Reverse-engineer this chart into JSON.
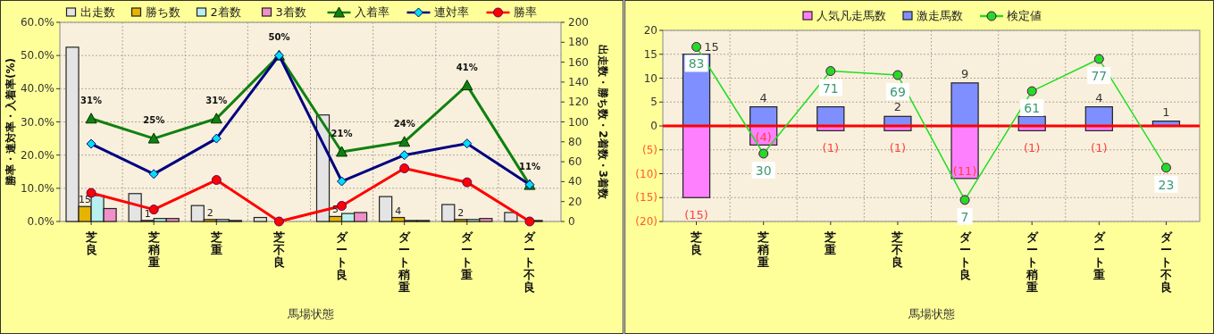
{
  "chart_data": [
    {
      "type": "bar",
      "xlabel": "馬場状態",
      "ylabel": "勝率・連対率・入着率(%)",
      "y2label": "出走数・勝ち数・2着数・3着数",
      "categories": [
        "芝良",
        "芝稍重",
        "芝重",
        "芝不良",
        "ダート良",
        "ダート稍重",
        "ダート重",
        "ダート不良"
      ],
      "ylim": [
        0,
        60
      ],
      "yticks": [
        {
          "value": 0,
          "label": "0.0%"
        },
        {
          "value": 10,
          "label": "10.0%"
        },
        {
          "value": 20,
          "label": "20.0%"
        },
        {
          "value": 30,
          "label": "30.0%"
        },
        {
          "value": 40,
          "label": "40.0%"
        },
        {
          "value": 50,
          "label": "50.0%"
        },
        {
          "value": 60,
          "label": "60.0%"
        }
      ],
      "y2lim": [
        0,
        200
      ],
      "y2ticks": [
        0,
        20,
        40,
        60,
        80,
        100,
        120,
        140,
        160,
        180,
        200
      ],
      "grid": true,
      "legend": "top",
      "series": [
        {
          "name": "出走数",
          "axis": "y2",
          "color": "#e4e4e4",
          "values": [
            175,
            28,
            16,
            4,
            107,
            25,
            17,
            9
          ]
        },
        {
          "name": "勝ち数",
          "axis": "y2",
          "color": "#e6b400",
          "values": [
            15,
            1,
            2,
            0,
            5,
            4,
            2,
            0
          ],
          "value_labels": [
            "15",
            "1",
            "2",
            null,
            "5",
            "4",
            "2",
            null
          ]
        },
        {
          "name": "2着数",
          "axis": "y2",
          "color": "#b8f0f0",
          "values": [
            26,
            3,
            2,
            null,
            8,
            1,
            2,
            1
          ]
        },
        {
          "name": "3着数",
          "axis": "y2",
          "color": "#f090c8",
          "values": [
            13,
            3,
            1,
            0,
            9,
            1,
            3,
            0
          ]
        },
        {
          "name": "入着率",
          "type": "line",
          "color": "#108010",
          "marker": "triangle",
          "values": [
            31,
            25,
            31,
            50,
            21,
            24,
            41,
            11
          ],
          "value_labels": [
            "31%",
            "25%",
            "31%",
            "50%",
            "21%",
            "24%",
            "41%",
            "11%"
          ]
        },
        {
          "name": "連対率",
          "type": "line",
          "color": "#000080",
          "marker": "diamond",
          "values": [
            23.4,
            14.3,
            25.0,
            50.0,
            12.1,
            20.0,
            23.5,
            11.1
          ]
        },
        {
          "name": "勝率",
          "type": "line",
          "color": "#ff0000",
          "marker": "circle",
          "values": [
            8.6,
            3.6,
            12.5,
            0.0,
            4.7,
            16.0,
            11.8,
            0.0
          ]
        }
      ]
    },
    {
      "type": "bar",
      "stacked": true,
      "xlabel": "馬場状態",
      "categories": [
        "芝良",
        "芝稍重",
        "芝重",
        "芝不良",
        "ダート良",
        "ダート稍重",
        "ダート重",
        "ダート不良"
      ],
      "ylim": [
        -20,
        20
      ],
      "yticks": [
        {
          "value": -20,
          "label": "(20)"
        },
        {
          "value": -15,
          "label": "(15)"
        },
        {
          "value": -10,
          "label": "(10)"
        },
        {
          "value": -5,
          "label": "(5)"
        },
        0,
        5,
        10,
        15,
        20
      ],
      "y2lim": [
        -3.7,
        91.2
      ],
      "tick_labels": "xy",
      "grid": true,
      "legend": "top",
      "ref_lines": [
        {
          "axis": "y",
          "value": 0,
          "color": "#ff0000"
        }
      ],
      "series": [
        {
          "name": "人気凡走馬数",
          "color": "#ff80ff",
          "values": [
            -15,
            -4,
            -1,
            -1,
            -11,
            -1,
            -1,
            0
          ],
          "value_labels": [
            "(15)",
            "(4)",
            "(1)",
            "(1)",
            "(11)",
            "(1)",
            "(1)",
            null
          ]
        },
        {
          "name": "激走馬数",
          "color": "#7f8fff",
          "values": [
            15,
            4,
            4,
            2,
            9,
            2,
            4,
            1
          ],
          "value_labels": [
            "15",
            "4",
            null,
            "2",
            "9",
            null,
            "4",
            "1"
          ]
        },
        {
          "name": "検定値",
          "type": "line",
          "axis": "y2",
          "color": "#22dd22",
          "marker": "circle",
          "values": [
            83,
            30,
            71,
            69,
            7,
            61,
            77,
            23
          ],
          "value_labels": [
            "83",
            "30",
            "71",
            "69",
            "7",
            "61",
            "77",
            "23"
          ]
        }
      ]
    }
  ]
}
